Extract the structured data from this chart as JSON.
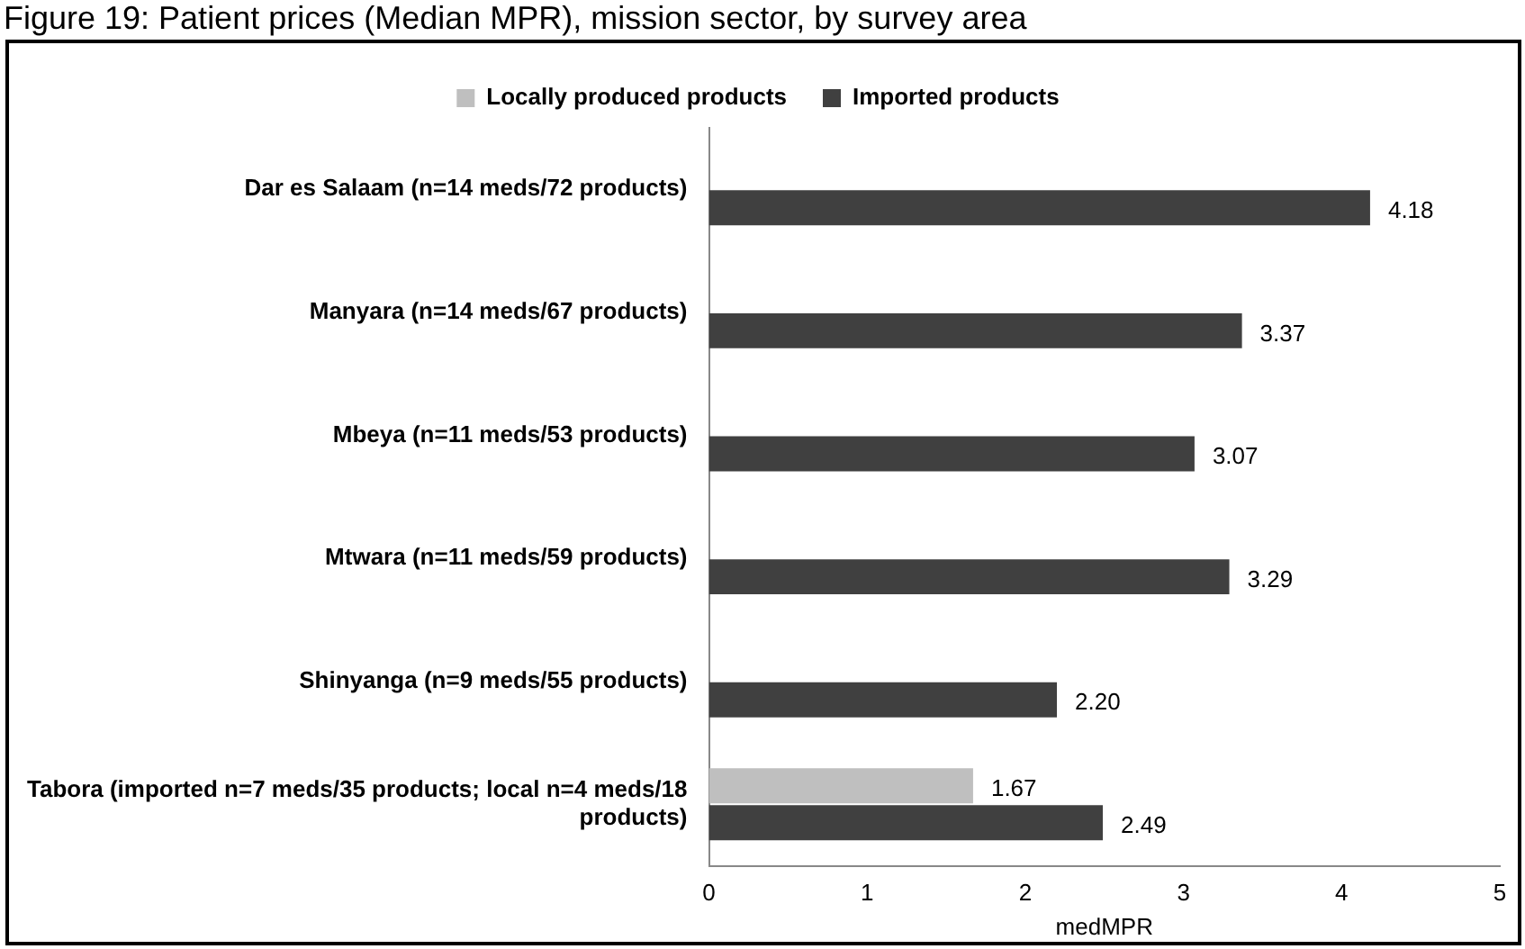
{
  "chart_data": {
    "type": "bar",
    "orientation": "horizontal",
    "title": "Figure 19: Patient prices (Median MPR), mission sector, by survey area",
    "xlabel": "medMPR",
    "categories": [
      "Dar es Salaam (n=14 meds/72 products)",
      "Manyara (n=14 meds/67 products)",
      "Mbeya (n=11 meds/53 products)",
      "Mtwara (n=11 meds/59 products)",
      "Shinyanga (n=9 meds/55 products)",
      "Tabora (imported n=7 meds/35 products; local n=4 meds/18 products)"
    ],
    "series": [
      {
        "name": "Locally produced products",
        "color": "#bfbfbf",
        "values": [
          null,
          null,
          null,
          null,
          null,
          1.67
        ],
        "value_labels": [
          null,
          null,
          null,
          null,
          null,
          "1.67"
        ]
      },
      {
        "name": "Imported products",
        "color": "#404040",
        "values": [
          4.18,
          3.37,
          3.07,
          3.29,
          2.2,
          2.49
        ],
        "value_labels": [
          "4.18",
          "3.37",
          "3.07",
          "3.29",
          "2.20",
          "2.49"
        ]
      }
    ],
    "xlim": [
      0,
      5
    ],
    "xticks": [
      0,
      1,
      2,
      3,
      4,
      5
    ],
    "grid": false,
    "legend": "top"
  }
}
